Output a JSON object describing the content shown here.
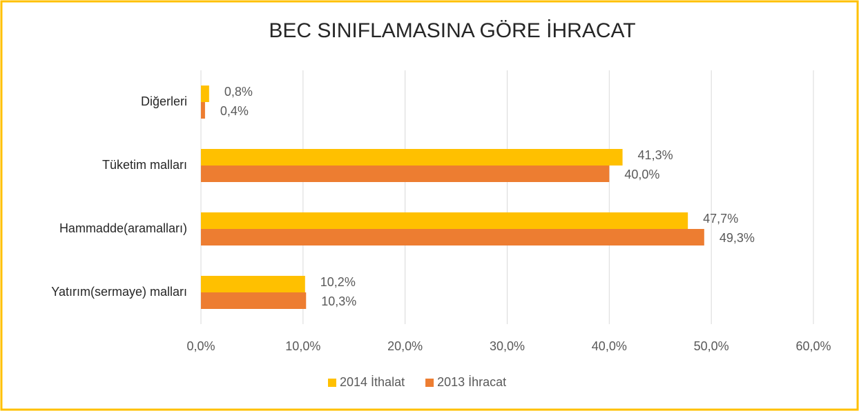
{
  "chart_data": {
    "type": "hbar",
    "title": "BEC SINIFLAMASINA GÖRE İHRACAT",
    "categories": [
      "Diğerleri",
      "Tüketim malları",
      "Hammadde(aramalları)",
      "Yatırım(sermaye) malları"
    ],
    "series": [
      {
        "name": "2014 İthalat",
        "color": "#ffc000",
        "values": [
          0.8,
          41.3,
          47.7,
          10.2
        ],
        "value_labels": [
          "0,8%",
          "41,3%",
          "47,7%",
          "10,2%"
        ]
      },
      {
        "name": "2013 İhracat",
        "color": "#ed7d31",
        "values": [
          0.4,
          40.0,
          49.3,
          10.3
        ],
        "value_labels": [
          "0,4%",
          "40,0%",
          "49,3%",
          "10,3%"
        ]
      }
    ],
    "xlim": [
      0,
      60
    ],
    "xticks": [
      {
        "value": 0,
        "label": "0,0%"
      },
      {
        "value": 10,
        "label": "10,0%"
      },
      {
        "value": 20,
        "label": "20,0%"
      },
      {
        "value": 30,
        "label": "30,0%"
      },
      {
        "value": 40,
        "label": "40,0%"
      },
      {
        "value": 50,
        "label": "50,0%"
      },
      {
        "value": 60,
        "label": "60,0%"
      }
    ],
    "grid": true,
    "legend": "bottom"
  }
}
